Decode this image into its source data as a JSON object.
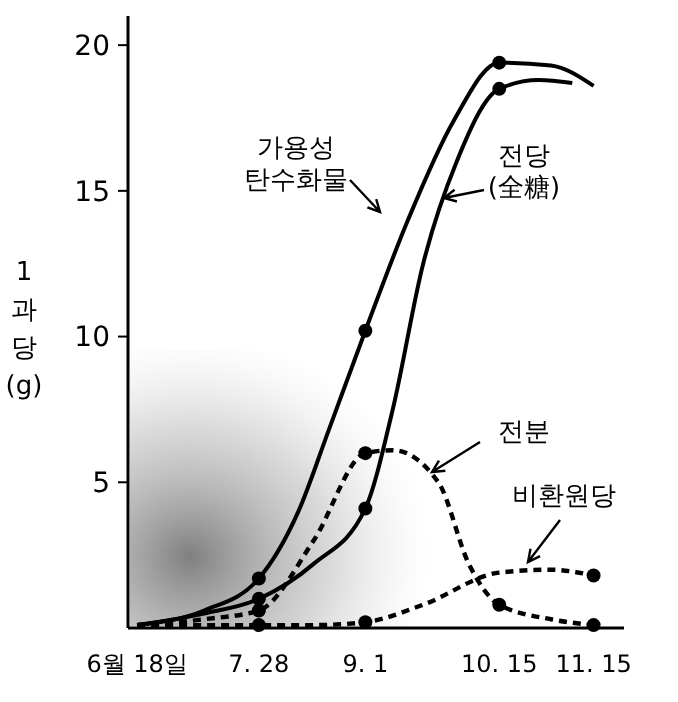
{
  "chart_data": {
    "type": "line",
    "ylabel": "1 과당 (g)",
    "xlim": [
      "--06-15",
      "--11-25"
    ],
    "ylim": [
      0,
      21
    ],
    "xticks": [
      {
        "value": "--06-18",
        "label": "6월 18일"
      },
      {
        "value": "--07-28",
        "label": "7. 28"
      },
      {
        "value": "--09-01",
        "label": "9. 1"
      },
      {
        "value": "--10-15",
        "label": "10. 15"
      },
      {
        "value": "--11-15",
        "label": "11. 15"
      }
    ],
    "yticks": [
      5,
      10,
      15,
      20
    ],
    "grid": false,
    "marker": "none",
    "series": [
      {
        "name": "가용성\n탄수화물",
        "color": "#000000",
        "line_style": "solid",
        "x": [
          "--06-18",
          "--07-10",
          "--07-28",
          "--08-10",
          "--08-20",
          "--09-01",
          "--09-15",
          "--09-30",
          "--10-15",
          "--11-01",
          "--11-15"
        ],
        "values": [
          0.1,
          0.6,
          1.7,
          4.0,
          6.8,
          10.2,
          14.0,
          17.4,
          19.4,
          19.3,
          18.6
        ]
      },
      {
        "name": "전당\n(全糖)",
        "color": "#000000",
        "line_style": "solid",
        "x": [
          "--06-18",
          "--07-10",
          "--07-28",
          "--08-15",
          "--09-01",
          "--09-10",
          "--09-20",
          "--10-01",
          "--10-15",
          "--10-28",
          "--11-08"
        ],
        "values": [
          0.1,
          0.5,
          1.0,
          2.2,
          4.1,
          7.5,
          12.5,
          16.0,
          18.5,
          18.8,
          18.7
        ]
      },
      {
        "name": "전분",
        "color": "#000000",
        "line_style": "dashed",
        "x": [
          "--06-18",
          "--07-10",
          "--07-28",
          "--08-15",
          "--09-01",
          "--09-10",
          "--09-25",
          "--10-05",
          "--10-15",
          "--11-01",
          "--11-15"
        ],
        "values": [
          0.1,
          0.3,
          0.6,
          3.0,
          6.0,
          6.1,
          5.0,
          2.2,
          0.8,
          0.3,
          0.1
        ]
      },
      {
        "name": "비환원당",
        "color": "#000000",
        "line_style": "dashed",
        "x": [
          "--06-18",
          "--07-28",
          "--08-15",
          "--09-01",
          "--09-20",
          "--10-15",
          "--11-01",
          "--11-15"
        ],
        "values": [
          0.1,
          0.1,
          0.1,
          0.2,
          0.8,
          1.9,
          2.0,
          1.8
        ]
      },
      {
        "type": "scatter",
        "marker": "circle",
        "color": "#000000",
        "x": [
          "--07-28",
          "--09-01",
          "--10-15",
          "--07-28",
          "--09-01",
          "--10-15",
          "--07-28",
          "--09-01",
          "--10-15",
          "--11-15",
          "--07-28",
          "--09-01",
          "--11-15"
        ],
        "values": [
          1.7,
          10.2,
          19.4,
          1.0,
          4.1,
          18.5,
          0.6,
          6.0,
          0.8,
          0.1,
          0.1,
          0.2,
          1.8
        ]
      }
    ]
  }
}
